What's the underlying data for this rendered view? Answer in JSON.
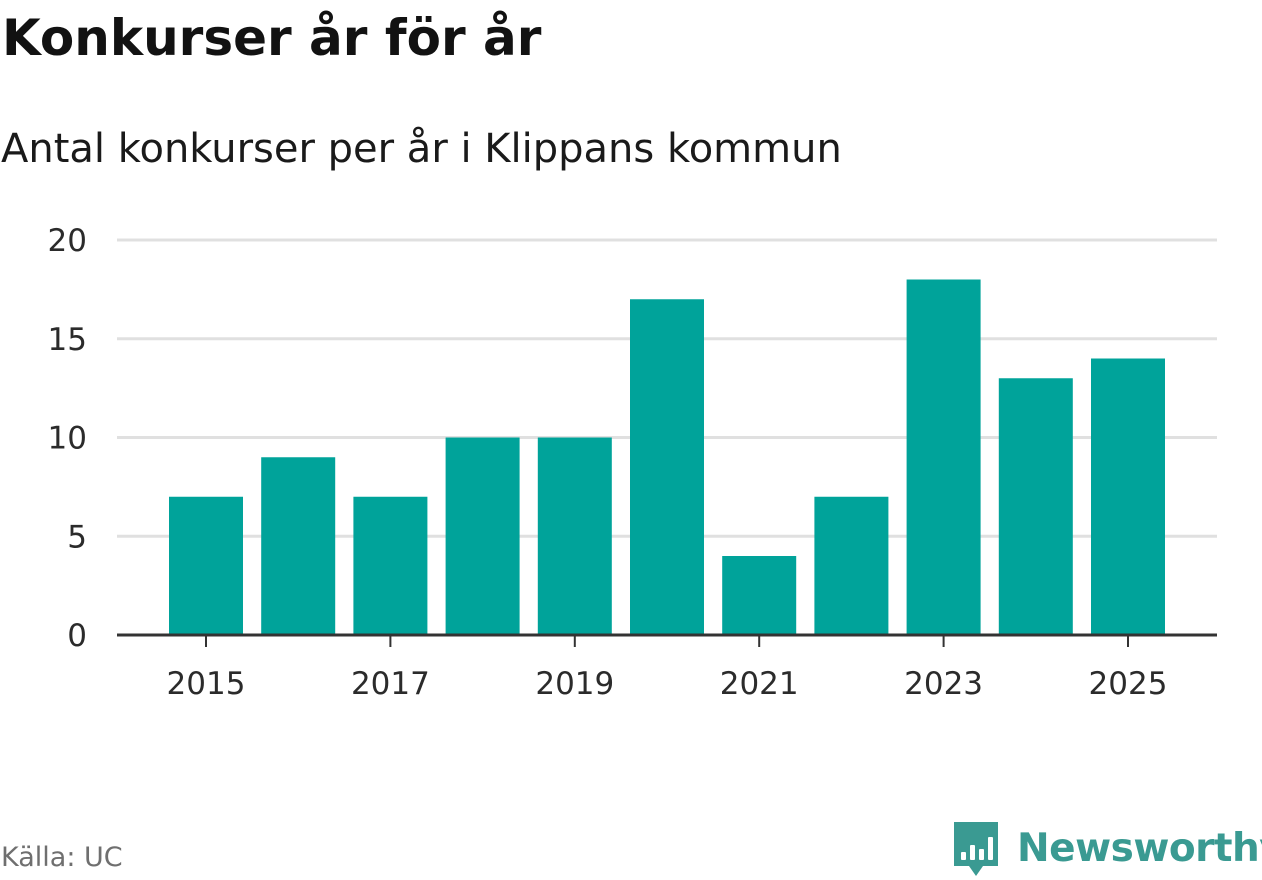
{
  "title": "Konkurser år för år",
  "subtitle": "Antal konkurser per år i Klippans kommun",
  "source": "Källa: UC",
  "brand": {
    "name": "Newsworthy",
    "icon": "newsworthy-logo-icon",
    "color": "#3a9a92"
  },
  "colors": {
    "bar": "#00a39a",
    "grid": "#e0e0e0",
    "axis": "#333333"
  },
  "chart_data": {
    "type": "bar",
    "categories": [
      "2015",
      "2016",
      "2017",
      "2018",
      "2019",
      "2020",
      "2021",
      "2022",
      "2023",
      "2024",
      "2025"
    ],
    "values": [
      7,
      9,
      7,
      10,
      10,
      17,
      4,
      7,
      18,
      13,
      14
    ],
    "x_tick_labels": [
      "2015",
      "2017",
      "2019",
      "2021",
      "2023",
      "2025"
    ],
    "y_ticks": [
      0,
      5,
      10,
      15,
      20
    ],
    "ylim": [
      0,
      20
    ],
    "xlabel": "",
    "ylabel": "",
    "grid": true,
    "legend": "none"
  }
}
